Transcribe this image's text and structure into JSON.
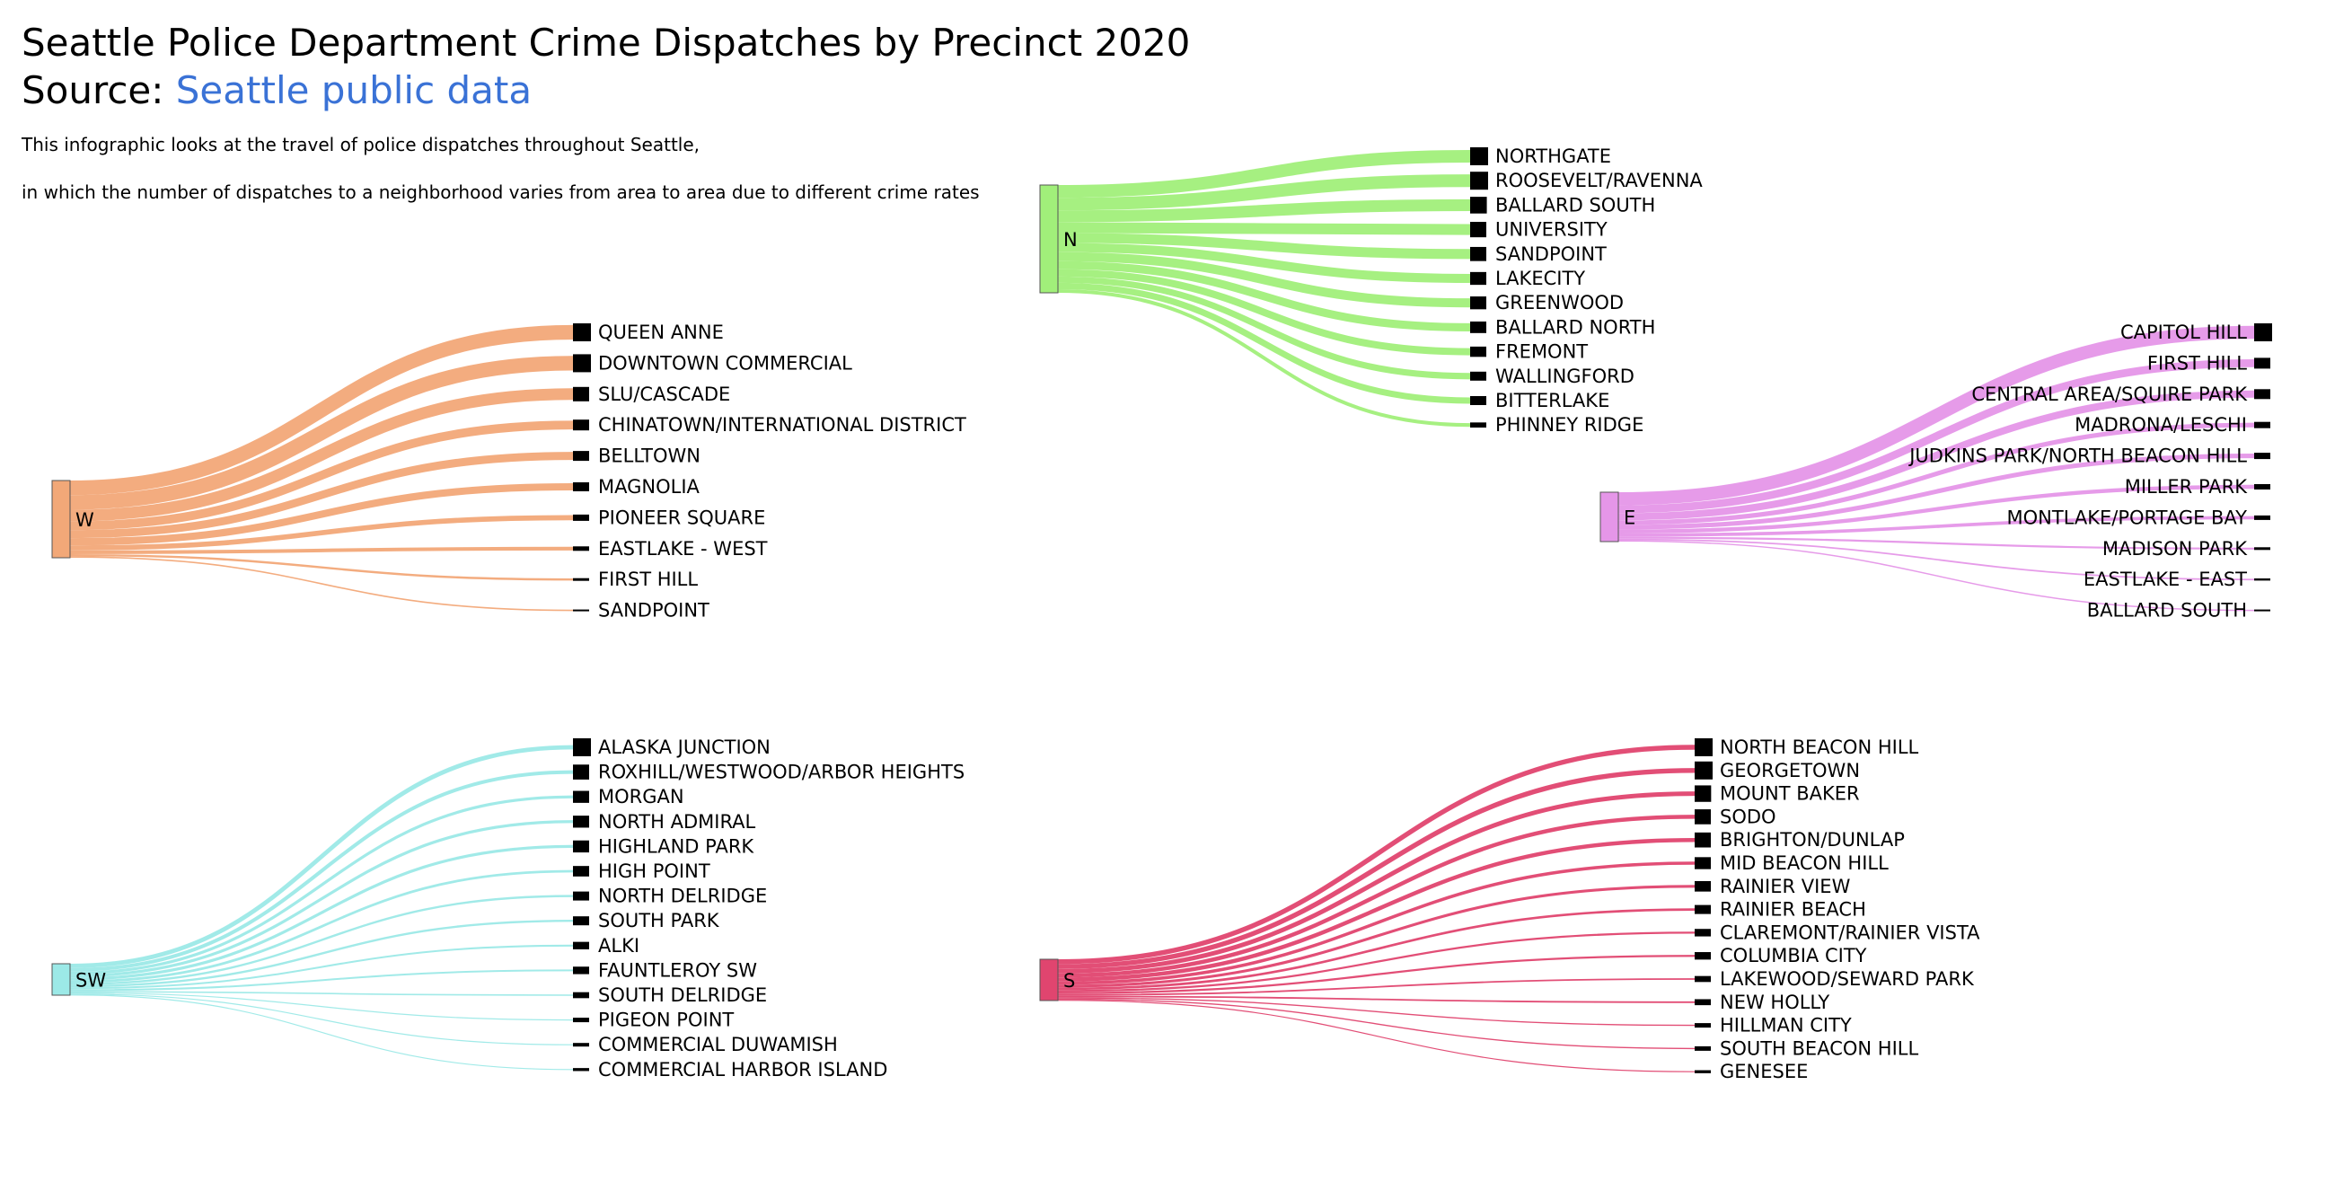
{
  "title": "Seattle Police Department Crime Dispatches by Precinct 2020",
  "source_prefix": "Source: ",
  "source_link_text": "Seattle public data",
  "description_lines": [
    "This infographic looks at the travel of police dispatches throughout Seattle,",
    "in which the number of dispatches to a neighborhood varies from area to area due to different crime rates"
  ],
  "chart_data": {
    "type": "sankey",
    "diagrams": [
      {
        "precinct": "W",
        "color": "#f2a878",
        "neighborhoods": [
          {
            "label": "QUEEN ANNE",
            "weight": 10
          },
          {
            "label": "DOWNTOWN COMMERCIAL",
            "weight": 10
          },
          {
            "label": "SLU/CASCADE",
            "weight": 8
          },
          {
            "label": "CHINATOWN/INTERNATIONAL DISTRICT",
            "weight": 6
          },
          {
            "label": "BELLTOWN",
            "weight": 5.5
          },
          {
            "label": "MAGNOLIA",
            "weight": 5
          },
          {
            "label": "PIONEER SQUARE",
            "weight": 3.5
          },
          {
            "label": "EASTLAKE - WEST",
            "weight": 2.5
          },
          {
            "label": "FIRST HILL",
            "weight": 1.5
          },
          {
            "label": "SANDPOINT",
            "weight": 1
          }
        ]
      },
      {
        "precinct": "N",
        "color": "#a1ef7a",
        "neighborhoods": [
          {
            "label": "NORTHGATE",
            "weight": 7
          },
          {
            "label": "ROOSEVELT/RAVENNA",
            "weight": 7
          },
          {
            "label": "BALLARD SOUTH",
            "weight": 6.5
          },
          {
            "label": "UNIVERSITY",
            "weight": 6
          },
          {
            "label": "SANDPOINT",
            "weight": 5.5
          },
          {
            "label": "LAKECITY",
            "weight": 5
          },
          {
            "label": "GREENWOOD",
            "weight": 5
          },
          {
            "label": "BALLARD NORTH",
            "weight": 4.5
          },
          {
            "label": "FREMONT",
            "weight": 4
          },
          {
            "label": "WALLINGFORD",
            "weight": 3.5
          },
          {
            "label": "BITTERLAKE",
            "weight": 3.5
          },
          {
            "label": "PHINNEY RIDGE",
            "weight": 2
          }
        ]
      },
      {
        "precinct": "E",
        "color": "#e596e8",
        "neighborhoods": [
          {
            "label": "CAPITOL HILL",
            "weight": 10
          },
          {
            "label": "FIRST HILL",
            "weight": 6
          },
          {
            "label": "CENTRAL AREA/SQUIRE PARK",
            "weight": 5.5
          },
          {
            "label": "MADRONA/LESCHI",
            "weight": 3.5
          },
          {
            "label": "JUDKINS PARK/NORTH BEACON HILL",
            "weight": 3.5
          },
          {
            "label": "MILLER PARK",
            "weight": 3
          },
          {
            "label": "MONTLAKE/PORTAGE BAY",
            "weight": 2.5
          },
          {
            "label": "MADISON PARK",
            "weight": 1.5
          },
          {
            "label": "EASTLAKE - EAST",
            "weight": 1.2
          },
          {
            "label": "BALLARD SOUTH",
            "weight": 1
          }
        ]
      },
      {
        "precinct": "SW",
        "color": "#9ce9e7",
        "neighborhoods": [
          {
            "label": "ALASKA JUNCTION",
            "weight": 6
          },
          {
            "label": "ROXHILL/WESTWOOD/ARBOR HEIGHTS",
            "weight": 5
          },
          {
            "label": "MORGAN",
            "weight": 4
          },
          {
            "label": "NORTH ADMIRAL",
            "weight": 4
          },
          {
            "label": "HIGHLAND PARK",
            "weight": 4
          },
          {
            "label": "HIGH POINT",
            "weight": 3.5
          },
          {
            "label": "NORTH DELRIDGE",
            "weight": 3
          },
          {
            "label": "SOUTH PARK",
            "weight": 3
          },
          {
            "label": "ALKI",
            "weight": 2.5
          },
          {
            "label": "FAUNTLEROY SW",
            "weight": 2.5
          },
          {
            "label": "SOUTH DELRIDGE",
            "weight": 2
          },
          {
            "label": "PIGEON POINT",
            "weight": 1.5
          },
          {
            "label": "COMMERCIAL DUWAMISH",
            "weight": 1.2
          },
          {
            "label": "COMMERCIAL HARBOR ISLAND",
            "weight": 1
          }
        ]
      },
      {
        "precinct": "S",
        "color": "#e0456f",
        "neighborhoods": [
          {
            "label": "NORTH BEACON HILL",
            "weight": 6
          },
          {
            "label": "GEORGETOWN",
            "weight": 6
          },
          {
            "label": "MOUNT BAKER",
            "weight": 5.5
          },
          {
            "label": "SODO",
            "weight": 5
          },
          {
            "label": "BRIGHTON/DUNLAP",
            "weight": 5
          },
          {
            "label": "MID BEACON HILL",
            "weight": 4
          },
          {
            "label": "RAINIER VIEW",
            "weight": 3.5
          },
          {
            "label": "RAINIER BEACH",
            "weight": 3
          },
          {
            "label": "CLAREMONT/RAINIER VISTA",
            "weight": 2.5
          },
          {
            "label": "COLUMBIA CITY",
            "weight": 2.5
          },
          {
            "label": "LAKEWOOD/SEWARD PARK",
            "weight": 2
          },
          {
            "label": "NEW HOLLY",
            "weight": 2
          },
          {
            "label": "HILLMAN CITY",
            "weight": 1.5
          },
          {
            "label": "SOUTH BEACON HILL",
            "weight": 1.5
          },
          {
            "label": "GENESEE",
            "weight": 1
          }
        ]
      }
    ]
  }
}
